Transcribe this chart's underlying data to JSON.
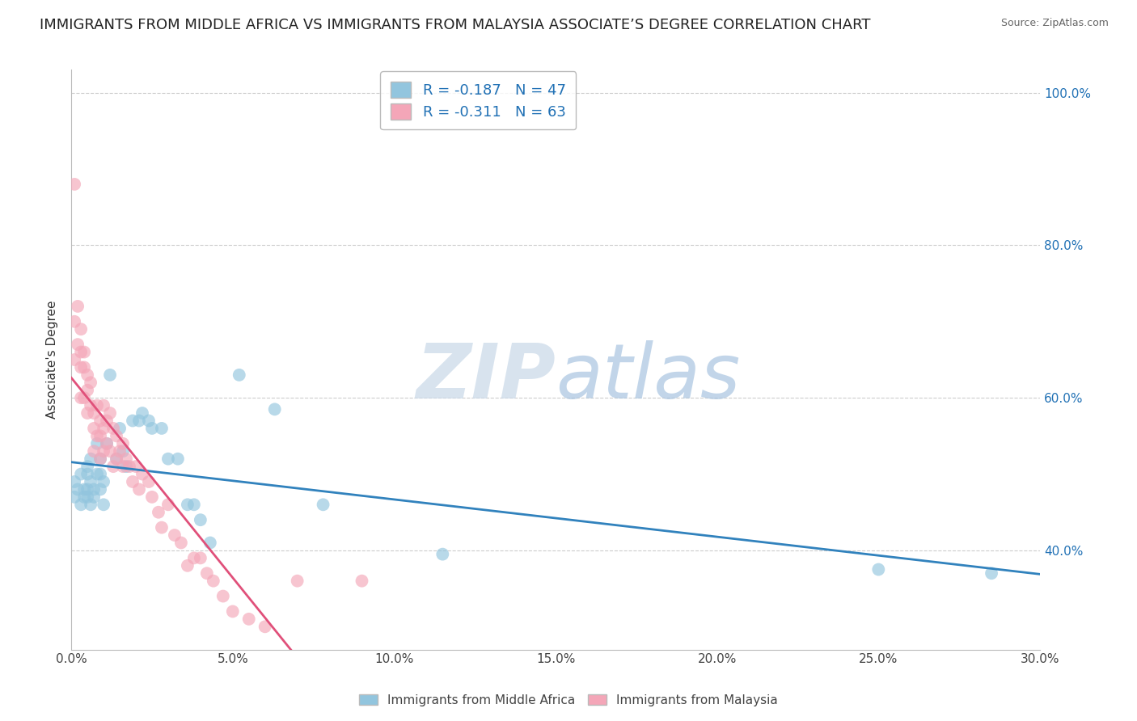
{
  "title": "IMMIGRANTS FROM MIDDLE AFRICA VS IMMIGRANTS FROM MALAYSIA ASSOCIATE’S DEGREE CORRELATION CHART",
  "source": "Source: ZipAtlas.com",
  "ylabel": "Associate's Degree",
  "legend_blue_label": "Immigrants from Middle Africa",
  "legend_pink_label": "Immigrants from Malaysia",
  "legend_blue_R": "R = -0.187",
  "legend_blue_N": "N = 47",
  "legend_pink_R": "R = -0.311",
  "legend_pink_N": "N = 63",
  "blue_color": "#92c5de",
  "pink_color": "#f4a6b8",
  "blue_line_color": "#3182bd",
  "pink_line_color": "#e0507a",
  "legend_text_color": "#2171b5",
  "watermark_color": "#d0dff0",
  "background_color": "#ffffff",
  "blue_x": [
    0.001,
    0.001,
    0.002,
    0.003,
    0.003,
    0.004,
    0.004,
    0.005,
    0.005,
    0.005,
    0.005,
    0.006,
    0.006,
    0.006,
    0.007,
    0.007,
    0.008,
    0.008,
    0.009,
    0.009,
    0.009,
    0.01,
    0.01,
    0.011,
    0.012,
    0.014,
    0.015,
    0.016,
    0.017,
    0.019,
    0.021,
    0.022,
    0.024,
    0.025,
    0.028,
    0.03,
    0.033,
    0.036,
    0.038,
    0.04,
    0.043,
    0.052,
    0.063,
    0.078,
    0.115,
    0.25,
    0.285
  ],
  "blue_y": [
    0.49,
    0.47,
    0.48,
    0.5,
    0.46,
    0.47,
    0.48,
    0.5,
    0.48,
    0.47,
    0.51,
    0.52,
    0.46,
    0.49,
    0.48,
    0.47,
    0.54,
    0.5,
    0.52,
    0.48,
    0.5,
    0.49,
    0.46,
    0.54,
    0.63,
    0.52,
    0.56,
    0.53,
    0.51,
    0.57,
    0.57,
    0.58,
    0.57,
    0.56,
    0.56,
    0.52,
    0.52,
    0.46,
    0.46,
    0.44,
    0.41,
    0.63,
    0.585,
    0.46,
    0.395,
    0.375,
    0.37
  ],
  "pink_x": [
    0.001,
    0.001,
    0.001,
    0.002,
    0.002,
    0.003,
    0.003,
    0.003,
    0.003,
    0.004,
    0.004,
    0.004,
    0.005,
    0.005,
    0.005,
    0.006,
    0.006,
    0.007,
    0.007,
    0.007,
    0.008,
    0.008,
    0.009,
    0.009,
    0.009,
    0.01,
    0.01,
    0.01,
    0.011,
    0.011,
    0.012,
    0.012,
    0.013,
    0.013,
    0.014,
    0.014,
    0.015,
    0.016,
    0.016,
    0.017,
    0.018,
    0.019,
    0.02,
    0.021,
    0.022,
    0.024,
    0.025,
    0.027,
    0.028,
    0.03,
    0.032,
    0.034,
    0.036,
    0.038,
    0.04,
    0.042,
    0.044,
    0.047,
    0.05,
    0.055,
    0.06,
    0.07,
    0.09
  ],
  "pink_y": [
    0.88,
    0.7,
    0.65,
    0.72,
    0.67,
    0.69,
    0.66,
    0.64,
    0.6,
    0.66,
    0.64,
    0.6,
    0.63,
    0.61,
    0.58,
    0.62,
    0.59,
    0.58,
    0.56,
    0.53,
    0.59,
    0.55,
    0.57,
    0.55,
    0.52,
    0.59,
    0.56,
    0.53,
    0.57,
    0.54,
    0.58,
    0.53,
    0.56,
    0.51,
    0.55,
    0.52,
    0.53,
    0.54,
    0.51,
    0.52,
    0.51,
    0.49,
    0.51,
    0.48,
    0.5,
    0.49,
    0.47,
    0.45,
    0.43,
    0.46,
    0.42,
    0.41,
    0.38,
    0.39,
    0.39,
    0.37,
    0.36,
    0.34,
    0.32,
    0.31,
    0.3,
    0.36,
    0.36
  ],
  "xlim": [
    0.0,
    0.3
  ],
  "ylim": [
    0.27,
    1.03
  ],
  "yticks": [
    0.4,
    0.6,
    0.8,
    1.0
  ],
  "ytick_labels": [
    "40.0%",
    "60.0%",
    "80.0%",
    "100.0%"
  ],
  "xticks": [
    0.0,
    0.05,
    0.1,
    0.15,
    0.2,
    0.25,
    0.3
  ],
  "xtick_labels": [
    "0.0%",
    "5.0%",
    "10.0%",
    "15.0%",
    "20.0%",
    "25.0%",
    "30.0%"
  ],
  "grid_color": "#cccccc",
  "title_fontsize": 13,
  "axis_label_fontsize": 11,
  "tick_fontsize": 11
}
